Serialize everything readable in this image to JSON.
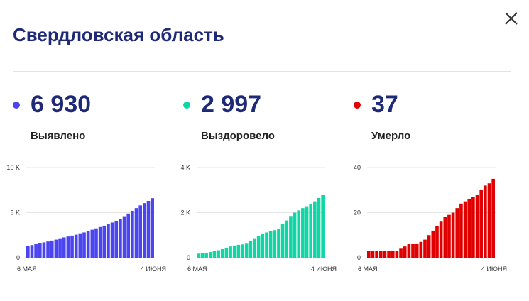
{
  "header": {
    "title": "Свердловская область",
    "close_icon": "close-icon"
  },
  "stats": [
    {
      "value": "6 930",
      "label": "Выявлено",
      "color": "#4a45f0"
    },
    {
      "value": "2 997",
      "label": "Выздоровело",
      "color": "#10d6a6"
    },
    {
      "value": "37",
      "label": "Умерло",
      "color": "#e00000"
    }
  ],
  "chart_data": [
    {
      "type": "bar",
      "series_color": "#4a45f0",
      "x_start_label": "6 МАЯ",
      "x_end_label": "4 ИЮНЯ",
      "ylim": [
        0,
        10000
      ],
      "y_ticks": [
        {
          "value": 0,
          "label": "0"
        },
        {
          "value": 5000,
          "label": "5 K"
        },
        {
          "value": 10000,
          "label": "10 K"
        }
      ],
      "values": [
        1300,
        1400,
        1500,
        1600,
        1700,
        1800,
        1900,
        2000,
        2150,
        2250,
        2350,
        2450,
        2550,
        2700,
        2800,
        2950,
        3100,
        3250,
        3400,
        3550,
        3700,
        3900,
        4100,
        4300,
        4600,
        4900,
        5200,
        5500,
        5800,
        6050,
        6300,
        6600
      ]
    },
    {
      "type": "bar",
      "series_color": "#10d6a6",
      "x_start_label": "6 МАЯ",
      "x_end_label": "4 ИЮНЯ",
      "ylim": [
        0,
        4000
      ],
      "y_ticks": [
        {
          "value": 0,
          "label": "0"
        },
        {
          "value": 2000,
          "label": "2 K"
        },
        {
          "value": 4000,
          "label": "4 K"
        }
      ],
      "values": [
        180,
        200,
        220,
        250,
        290,
        330,
        380,
        440,
        500,
        540,
        570,
        590,
        620,
        760,
        860,
        960,
        1060,
        1120,
        1180,
        1220,
        1270,
        1500,
        1650,
        1850,
        2000,
        2100,
        2200,
        2280,
        2380,
        2500,
        2650,
        2800
      ]
    },
    {
      "type": "bar",
      "series_color": "#e00000",
      "x_start_label": "6 МАЯ",
      "x_end_label": "4 ИЮНЯ",
      "ylim": [
        0,
        40
      ],
      "y_ticks": [
        {
          "value": 0,
          "label": "0"
        },
        {
          "value": 20,
          "label": "20"
        },
        {
          "value": 40,
          "label": "40"
        }
      ],
      "values": [
        3,
        3,
        3,
        3,
        3,
        3,
        3,
        3,
        4,
        5,
        6,
        6,
        6,
        7,
        8,
        10,
        12,
        14,
        16,
        18,
        19,
        20,
        22,
        24,
        25,
        26,
        27,
        28,
        30,
        32,
        33,
        35
      ]
    }
  ]
}
